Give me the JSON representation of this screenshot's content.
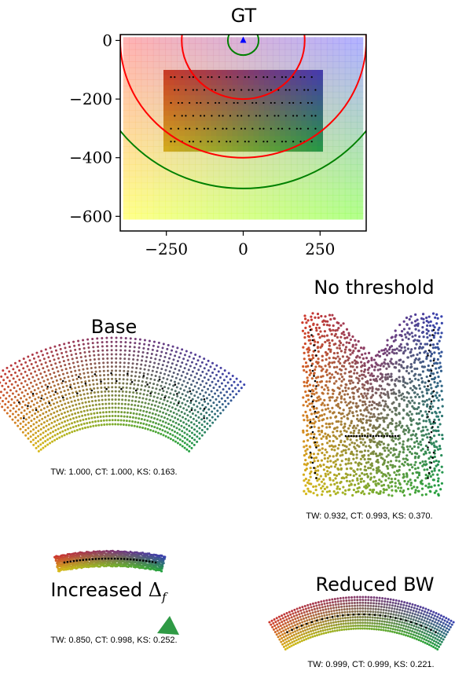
{
  "chart_data": [
    {
      "type": "scatter",
      "title": "GT",
      "xlim": [
        -400,
        400
      ],
      "ylim": [
        -650,
        20
      ],
      "xticks": [
        -250,
        0,
        250
      ],
      "yticks": [
        0,
        -200,
        -400,
        -600
      ],
      "xtick_labels": [
        "−250",
        "0",
        "250"
      ],
      "ytick_labels": [
        "0",
        "−200",
        "−400",
        "−600"
      ],
      "background_grid": {
        "x_range": [
          -380,
          380
        ],
        "y_range": [
          -600,
          0
        ]
      },
      "highlight_rect": {
        "x_range": [
          -250,
          250
        ],
        "y_range": [
          -370,
          -110
        ]
      },
      "source_marker": {
        "x": 0,
        "y": 0,
        "color": "#0000ff"
      },
      "circles": [
        {
          "cx": 0,
          "cy": 0,
          "r": 50,
          "color": "#008000"
        },
        {
          "cx": 0,
          "cy": 0,
          "r": 200,
          "color": "#ff0000"
        },
        {
          "cx": 0,
          "cy": 0,
          "r": 400,
          "color": "#ff0000"
        },
        {
          "cx": 0,
          "cy": 0,
          "r": 505,
          "color": "#008000"
        }
      ],
      "colors": {
        "top_left": "#ff9999",
        "top_right": "#9999ff",
        "bottom_left": "#ffff66",
        "bottom_right": "#99ff66"
      }
    },
    {
      "type": "scatter",
      "title": "Base",
      "caption": "TW: 1.000, CT: 1.000, KS: 0.163."
    },
    {
      "type": "scatter",
      "title": "No threshold",
      "caption": "TW: 0.932, CT: 0.993, KS: 0.370."
    },
    {
      "type": "scatter",
      "title": "Increased Δf",
      "title_main": "Increased ",
      "title_symbol": "Δ",
      "title_sub": "f",
      "caption": "TW: 0.850, CT: 0.998, KS: 0.252."
    },
    {
      "type": "scatter",
      "title": "Reduced BW",
      "caption": "TW: 0.999, CT: 0.999, KS: 0.221."
    }
  ]
}
